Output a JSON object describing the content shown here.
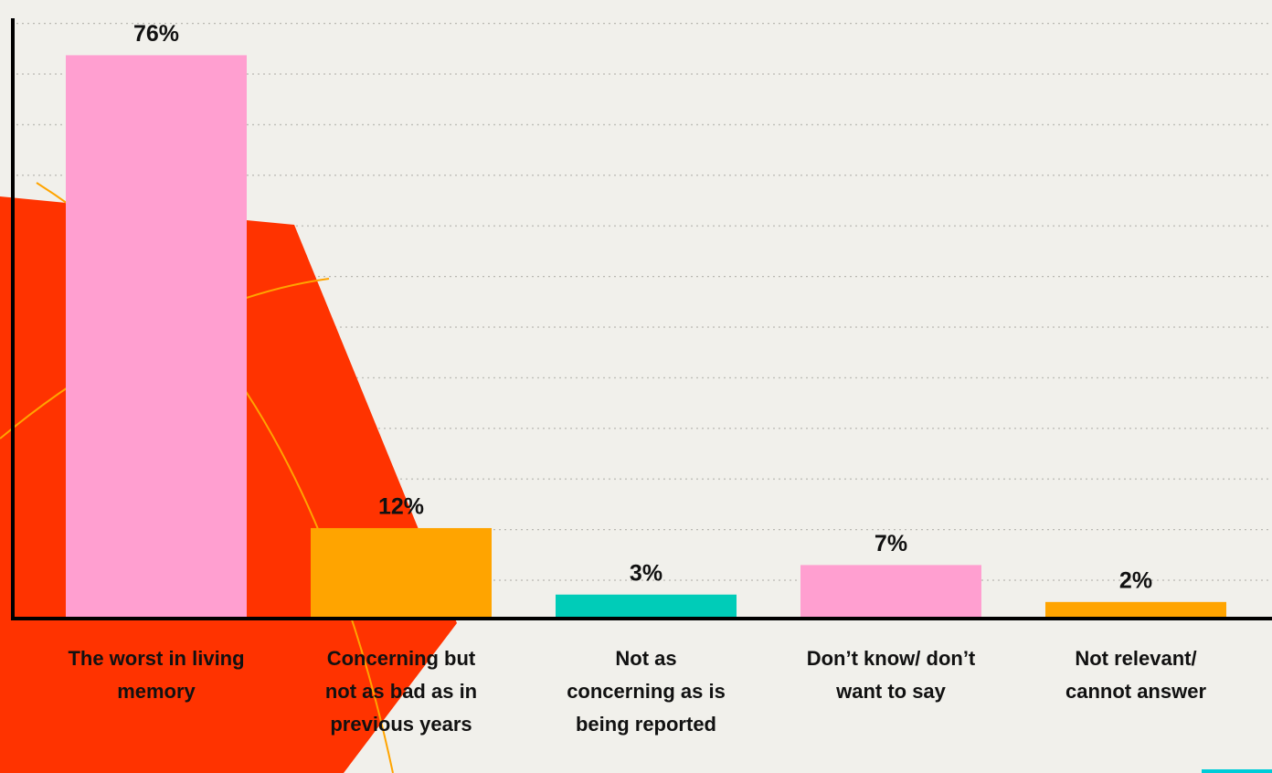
{
  "chart_data": {
    "type": "bar",
    "categories": [
      "The worst in living memory",
      "Concerning but not as bad as in previous years",
      "Not as concerning as is being reported",
      "Don’t know/ don’t want to say",
      "Not relevant/ cannot answer"
    ],
    "values": [
      76,
      12,
      3,
      7,
      2
    ],
    "value_labels": [
      "76%",
      "12%",
      "3%",
      "7%",
      "2%"
    ],
    "colors": [
      "#ff9fd0",
      "#ffa400",
      "#00ccb8",
      "#ff9fd0",
      "#ffa400"
    ],
    "ylim": [
      0,
      81
    ]
  }
}
